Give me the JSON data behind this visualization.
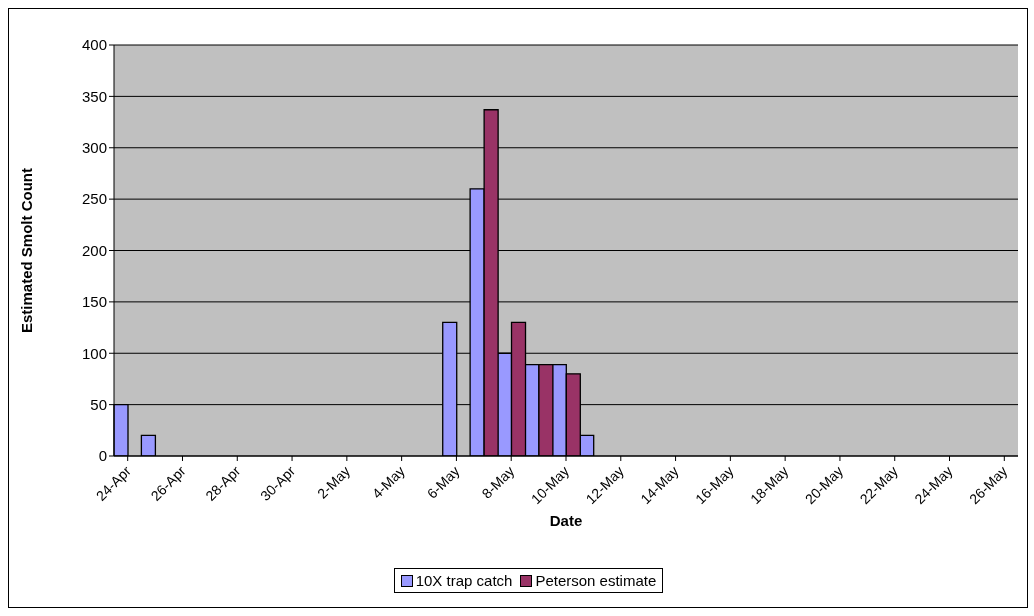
{
  "chart_data": {
    "type": "bar",
    "xlabel": "Date",
    "ylabel": "Estimated Smolt Count",
    "categories": [
      "24-Apr",
      null,
      "26-Apr",
      null,
      "28-Apr",
      null,
      "30-Apr",
      null,
      "2-May",
      null,
      "4-May",
      null,
      "6-May",
      null,
      "8-May",
      null,
      "10-May",
      null,
      "12-May",
      null,
      "14-May",
      null,
      "16-May",
      null,
      "18-May",
      null,
      "20-May",
      null,
      "22-May",
      null,
      "24-May",
      null,
      "26-May"
    ],
    "series": [
      {
        "name": "10X trap catch",
        "color": "#9999ff",
        "values": [
          50,
          20,
          null,
          null,
          null,
          null,
          null,
          null,
          null,
          null,
          null,
          null,
          130,
          260,
          100,
          89,
          89,
          20,
          null,
          null,
          null,
          null,
          null,
          null,
          null,
          null,
          null,
          null,
          null,
          null,
          null,
          null,
          null
        ]
      },
      {
        "name": "Peterson estimate",
        "color": "#993366",
        "values": [
          null,
          null,
          null,
          null,
          null,
          null,
          null,
          null,
          null,
          null,
          null,
          null,
          null,
          337,
          130,
          89,
          80,
          null,
          null,
          null,
          null,
          null,
          null,
          null,
          null,
          null,
          null,
          null,
          null,
          null,
          null,
          null,
          null
        ]
      }
    ],
    "ylim": [
      0,
      400
    ],
    "yticks": [
      0,
      50,
      100,
      150,
      200,
      250,
      300,
      350,
      400
    ],
    "grid": "y",
    "legend": "bottom"
  }
}
